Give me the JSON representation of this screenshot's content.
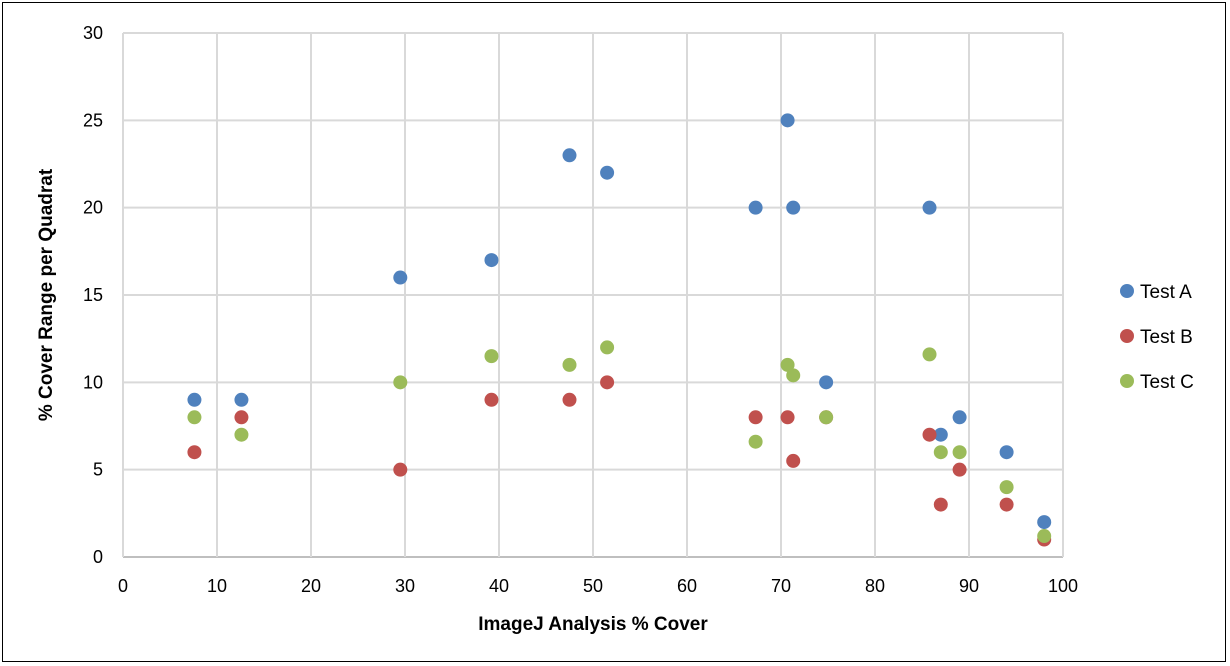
{
  "chart_data": {
    "type": "scatter",
    "title": "",
    "xlabel": "ImageJ Analysis % Cover",
    "ylabel": "% Cover Range per Quadrat",
    "xlim": [
      0,
      100
    ],
    "ylim": [
      0,
      30
    ],
    "xticks": [
      0,
      10,
      20,
      30,
      40,
      50,
      60,
      70,
      80,
      90,
      100
    ],
    "yticks": [
      0,
      5,
      10,
      15,
      20,
      25,
      30
    ],
    "grid": true,
    "legend_position": "right",
    "series": [
      {
        "name": "Test A",
        "color": "#4f81bd",
        "points": [
          [
            7.6,
            9
          ],
          [
            12.6,
            9
          ],
          [
            29.5,
            16
          ],
          [
            39.2,
            17
          ],
          [
            47.5,
            23
          ],
          [
            51.5,
            22
          ],
          [
            67.3,
            20
          ],
          [
            70.7,
            25
          ],
          [
            71.3,
            20
          ],
          [
            74.8,
            10
          ],
          [
            85.8,
            20
          ],
          [
            87.0,
            7
          ],
          [
            89.0,
            8
          ],
          [
            94.0,
            6
          ],
          [
            98.0,
            2
          ]
        ]
      },
      {
        "name": "Test B",
        "color": "#c0504d",
        "points": [
          [
            7.6,
            6
          ],
          [
            12.6,
            8
          ],
          [
            29.5,
            5
          ],
          [
            39.2,
            9
          ],
          [
            47.5,
            9
          ],
          [
            51.5,
            10
          ],
          [
            67.3,
            8
          ],
          [
            70.7,
            8
          ],
          [
            71.3,
            5.5
          ],
          [
            74.8,
            8
          ],
          [
            85.8,
            7
          ],
          [
            87.0,
            3
          ],
          [
            89.0,
            5
          ],
          [
            94.0,
            3
          ],
          [
            98.0,
            1
          ]
        ]
      },
      {
        "name": "Test C",
        "color": "#9bbb59",
        "points": [
          [
            7.6,
            8
          ],
          [
            12.6,
            7
          ],
          [
            29.5,
            10
          ],
          [
            39.2,
            11.5
          ],
          [
            47.5,
            11
          ],
          [
            51.5,
            12
          ],
          [
            67.3,
            6.6
          ],
          [
            70.7,
            11
          ],
          [
            71.3,
            10.4
          ],
          [
            74.8,
            8
          ],
          [
            85.8,
            11.6
          ],
          [
            87.0,
            6
          ],
          [
            89.0,
            6
          ],
          [
            94.0,
            4
          ],
          [
            98.0,
            1.2
          ]
        ]
      }
    ]
  }
}
